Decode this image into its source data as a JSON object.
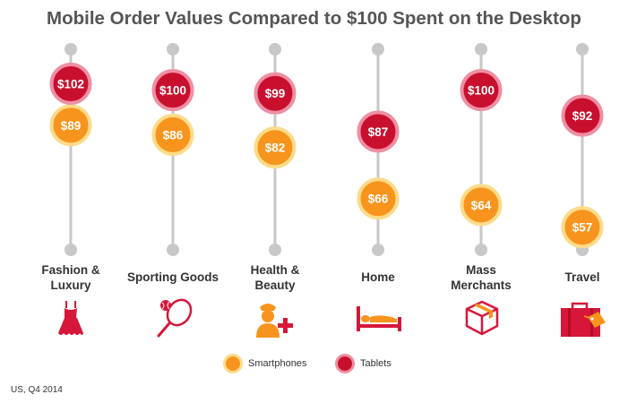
{
  "title": "Mobile Order Values Compared to $100 Spent on the Desktop",
  "colors": {
    "smartphone_fill": "#F7941D",
    "smartphone_ring": "#FCDC8A",
    "tablet_fill": "#C8102E",
    "tablet_ring": "#EE8FA3",
    "track": "#C8C8C8",
    "icon": "#D6173A",
    "icon_accent": "#F7941D",
    "title": "#555555"
  },
  "chart_data": {
    "type": "scatter",
    "title": "Mobile Order Values Compared to $100 Spent on the Desktop",
    "categories": [
      "Fashion & Luxury",
      "Sporting Goods",
      "Health & Beauty",
      "Home",
      "Mass Merchants",
      "Travel"
    ],
    "series": [
      {
        "name": "Smartphones",
        "values": [
          89,
          86,
          82,
          66,
          64,
          57
        ],
        "labels": [
          "$89",
          "$86",
          "$82",
          "$66",
          "$64",
          "$57"
        ]
      },
      {
        "name": "Tablets",
        "values": [
          102,
          100,
          99,
          87,
          100,
          92
        ],
        "labels": [
          "$102",
          "$100",
          "$99",
          "$87",
          "$100",
          "$92"
        ]
      }
    ],
    "legend_position": "bottom-center",
    "grid": false
  },
  "categories": [
    {
      "line1": "Fashion &",
      "line2": "Luxury",
      "icon": "dress-icon"
    },
    {
      "line1": "Sporting Goods",
      "line2": "",
      "icon": "tennis-racket-icon"
    },
    {
      "line1": "Health &",
      "line2": "Beauty",
      "icon": "nurse-icon"
    },
    {
      "line1": "Home",
      "line2": "",
      "icon": "bed-icon"
    },
    {
      "line1": "Mass",
      "line2": "Merchants",
      "icon": "package-icon"
    },
    {
      "line1": "Travel",
      "line2": "",
      "icon": "suitcase-icon"
    }
  ],
  "legend": {
    "smartphones": "Smartphones",
    "tablets": "Tablets"
  },
  "source": "US, Q4 2014"
}
